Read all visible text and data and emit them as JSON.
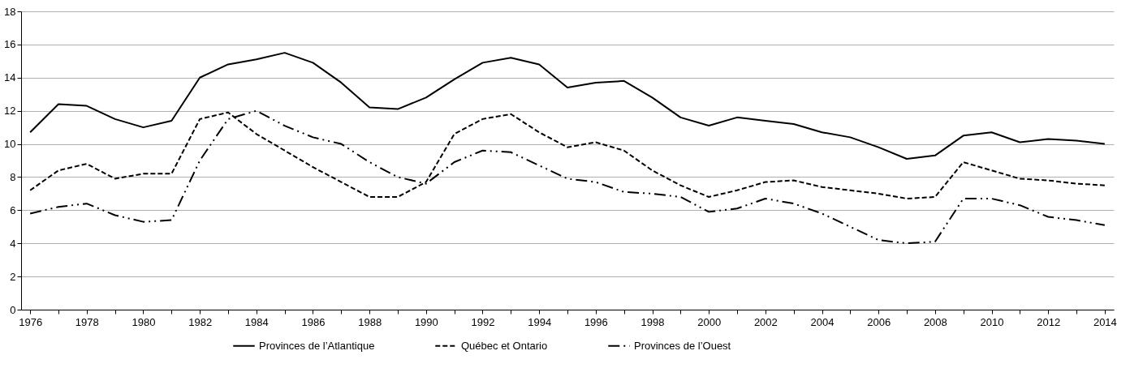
{
  "chart_data": {
    "type": "line",
    "categories": [
      "1976",
      null,
      "1978",
      null,
      "1980",
      null,
      "1982",
      null,
      "1984",
      null,
      "1986",
      null,
      "1988",
      null,
      "1990",
      null,
      "1992",
      null,
      "1994",
      null,
      "1996",
      null,
      "1998",
      null,
      "2000",
      null,
      "2002",
      null,
      "2004",
      null,
      "2006",
      null,
      "2008",
      null,
      "2010",
      null,
      "2012",
      null,
      "2014"
    ],
    "series": [
      {
        "name": "Provinces de l’Atlantique",
        "color": "#000000",
        "line_style": "solid",
        "values": [
          10.7,
          12.4,
          12.3,
          11.5,
          11.0,
          11.4,
          14.0,
          14.8,
          15.1,
          15.5,
          14.9,
          13.7,
          12.2,
          12.1,
          12.8,
          13.9,
          14.9,
          15.2,
          14.8,
          13.4,
          13.7,
          13.8,
          12.8,
          11.6,
          11.1,
          11.6,
          11.4,
          11.2,
          10.7,
          10.4,
          9.8,
          9.1,
          9.3,
          10.5,
          10.7,
          10.1,
          10.3,
          10.2,
          10.0
        ]
      },
      {
        "name": "Québec et Ontario",
        "color": "#000000",
        "line_style": "dashed",
        "values": [
          7.2,
          8.4,
          8.8,
          7.9,
          8.2,
          8.2,
          11.5,
          11.9,
          10.6,
          9.6,
          8.6,
          7.7,
          6.8,
          6.8,
          7.7,
          10.6,
          11.5,
          11.8,
          10.7,
          9.8,
          10.1,
          9.6,
          8.4,
          7.5,
          6.8,
          7.2,
          7.7,
          7.8,
          7.4,
          7.2,
          7.0,
          6.7,
          6.8,
          8.9,
          8.4,
          7.9,
          7.8,
          7.6,
          7.5
        ]
      },
      {
        "name": "Provinces de l’Ouest",
        "color": "#000000",
        "line_style": "dashdot",
        "values": [
          5.8,
          6.2,
          6.4,
          5.7,
          5.3,
          5.4,
          9.0,
          11.5,
          12.0,
          11.1,
          10.4,
          10.0,
          8.9,
          8.0,
          7.6,
          8.9,
          9.6,
          9.5,
          8.7,
          7.9,
          7.7,
          7.1,
          7.0,
          6.8,
          5.9,
          6.1,
          6.7,
          6.4,
          5.8,
          5.0,
          4.2,
          4.0,
          4.1,
          6.7,
          6.7,
          6.3,
          5.6,
          5.4,
          5.1
        ]
      }
    ],
    "ylim": [
      0,
      18
    ],
    "yticks": [
      0,
      2,
      4,
      6,
      8,
      10,
      12,
      14,
      16,
      18
    ],
    "grid": "y",
    "legend": "bottom",
    "marker": "none"
  }
}
